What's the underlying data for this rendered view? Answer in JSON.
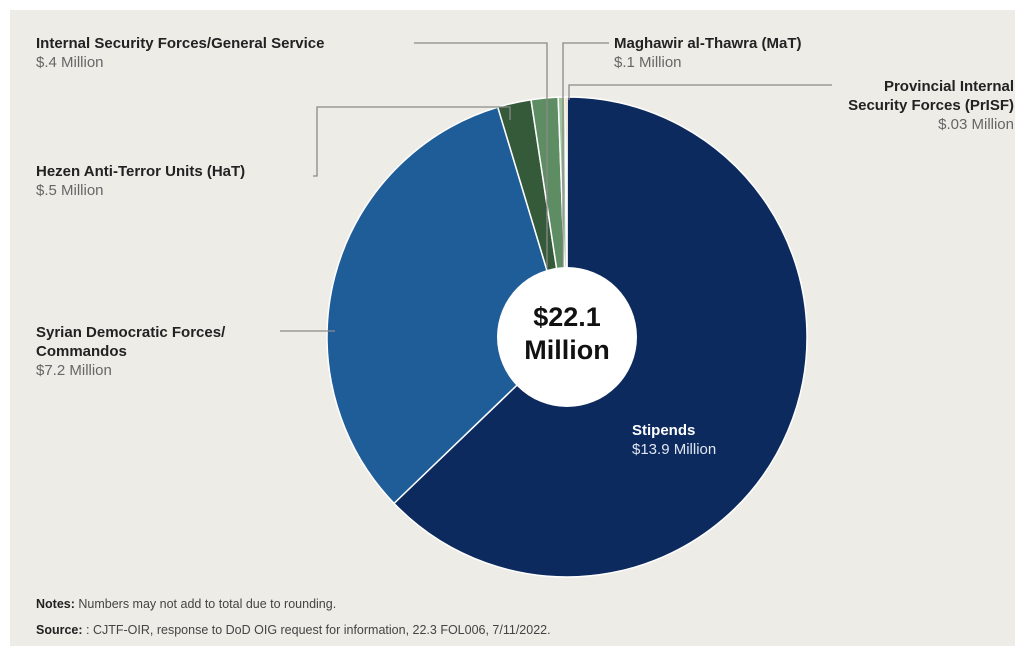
{
  "chart_data": {
    "type": "pie",
    "style": "donut",
    "center_label": [
      "$22.1",
      "Million"
    ],
    "slices": [
      {
        "label": "Stipends",
        "value_text": "$13.9 Million",
        "value": 13.9,
        "color": "#0d2a5e"
      },
      {
        "label": "Syrian Democratic Forces/ Commandos",
        "value_text": "$7.2 Million",
        "value": 7.2,
        "color": "#1f5d99"
      },
      {
        "label": "Hezen Anti-Terror Units (HaT)",
        "value_text": "$.5 Million",
        "value": 0.5,
        "color": "#345a3a"
      },
      {
        "label": "Internal Security Forces/General Service",
        "value_text": "$.4 Million",
        "value": 0.4,
        "color": "#5e8d63"
      },
      {
        "label": "Maghawir al-Thawra (MaT)",
        "value_text": "$.1 Million",
        "value": 0.1,
        "color": "#9fc39a"
      },
      {
        "label": "Provincial Internal Security Forces (PrISF)",
        "value_text": "$.03 Million",
        "value": 0.03,
        "color": "#e8a526"
      }
    ]
  },
  "notes": {
    "notes_label": "Notes:",
    "notes_text": " Numbers may not add to total due to rounding.",
    "source_label": "Source:",
    "source_text": " : CJTF-OIR, response to DoD OIG request for information, 22.3 FOL006, 7/11/2022."
  }
}
